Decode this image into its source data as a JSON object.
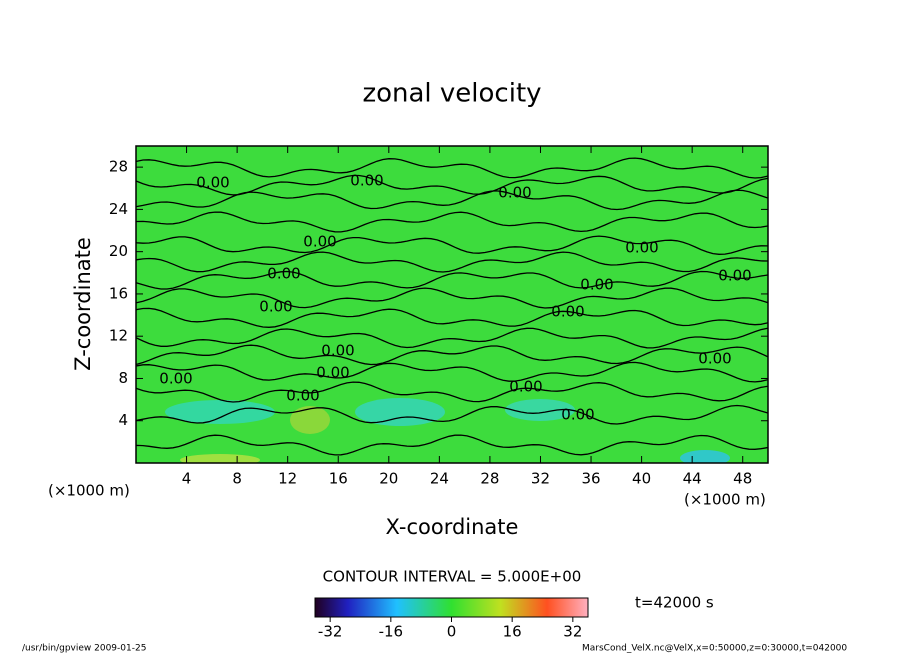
{
  "chart_data": {
    "type": "contour",
    "title": "zonal velocity",
    "xlabel": "X-coordinate",
    "ylabel": "Z-coordinate",
    "x_unit": "(×1000 m)",
    "y_unit": "(×1000 m)",
    "xlim": [
      0,
      50
    ],
    "xticks": [
      4,
      8,
      12,
      16,
      20,
      24,
      28,
      32,
      36,
      40,
      44,
      48
    ],
    "ylim": [
      0,
      30
    ],
    "yticks": [
      4,
      8,
      12,
      16,
      20,
      24,
      28
    ],
    "contour_levels": [
      0
    ],
    "contour_level_labels": [
      "0.00"
    ],
    "contour_interval_label": "CONTOUR INTERVAL = 5.000E+00",
    "colorbar_lim": [
      -36,
      36
    ],
    "colorbar_ticks": [
      -32,
      -16,
      0,
      16,
      32
    ],
    "time_label": "t=42000 s",
    "footer_left": "/usr/bin/gpview  2009-01-25",
    "footer_right": "MarsCond_VelX.nc@VelX,x=0:50000,z=0:30000,t=042000"
  }
}
